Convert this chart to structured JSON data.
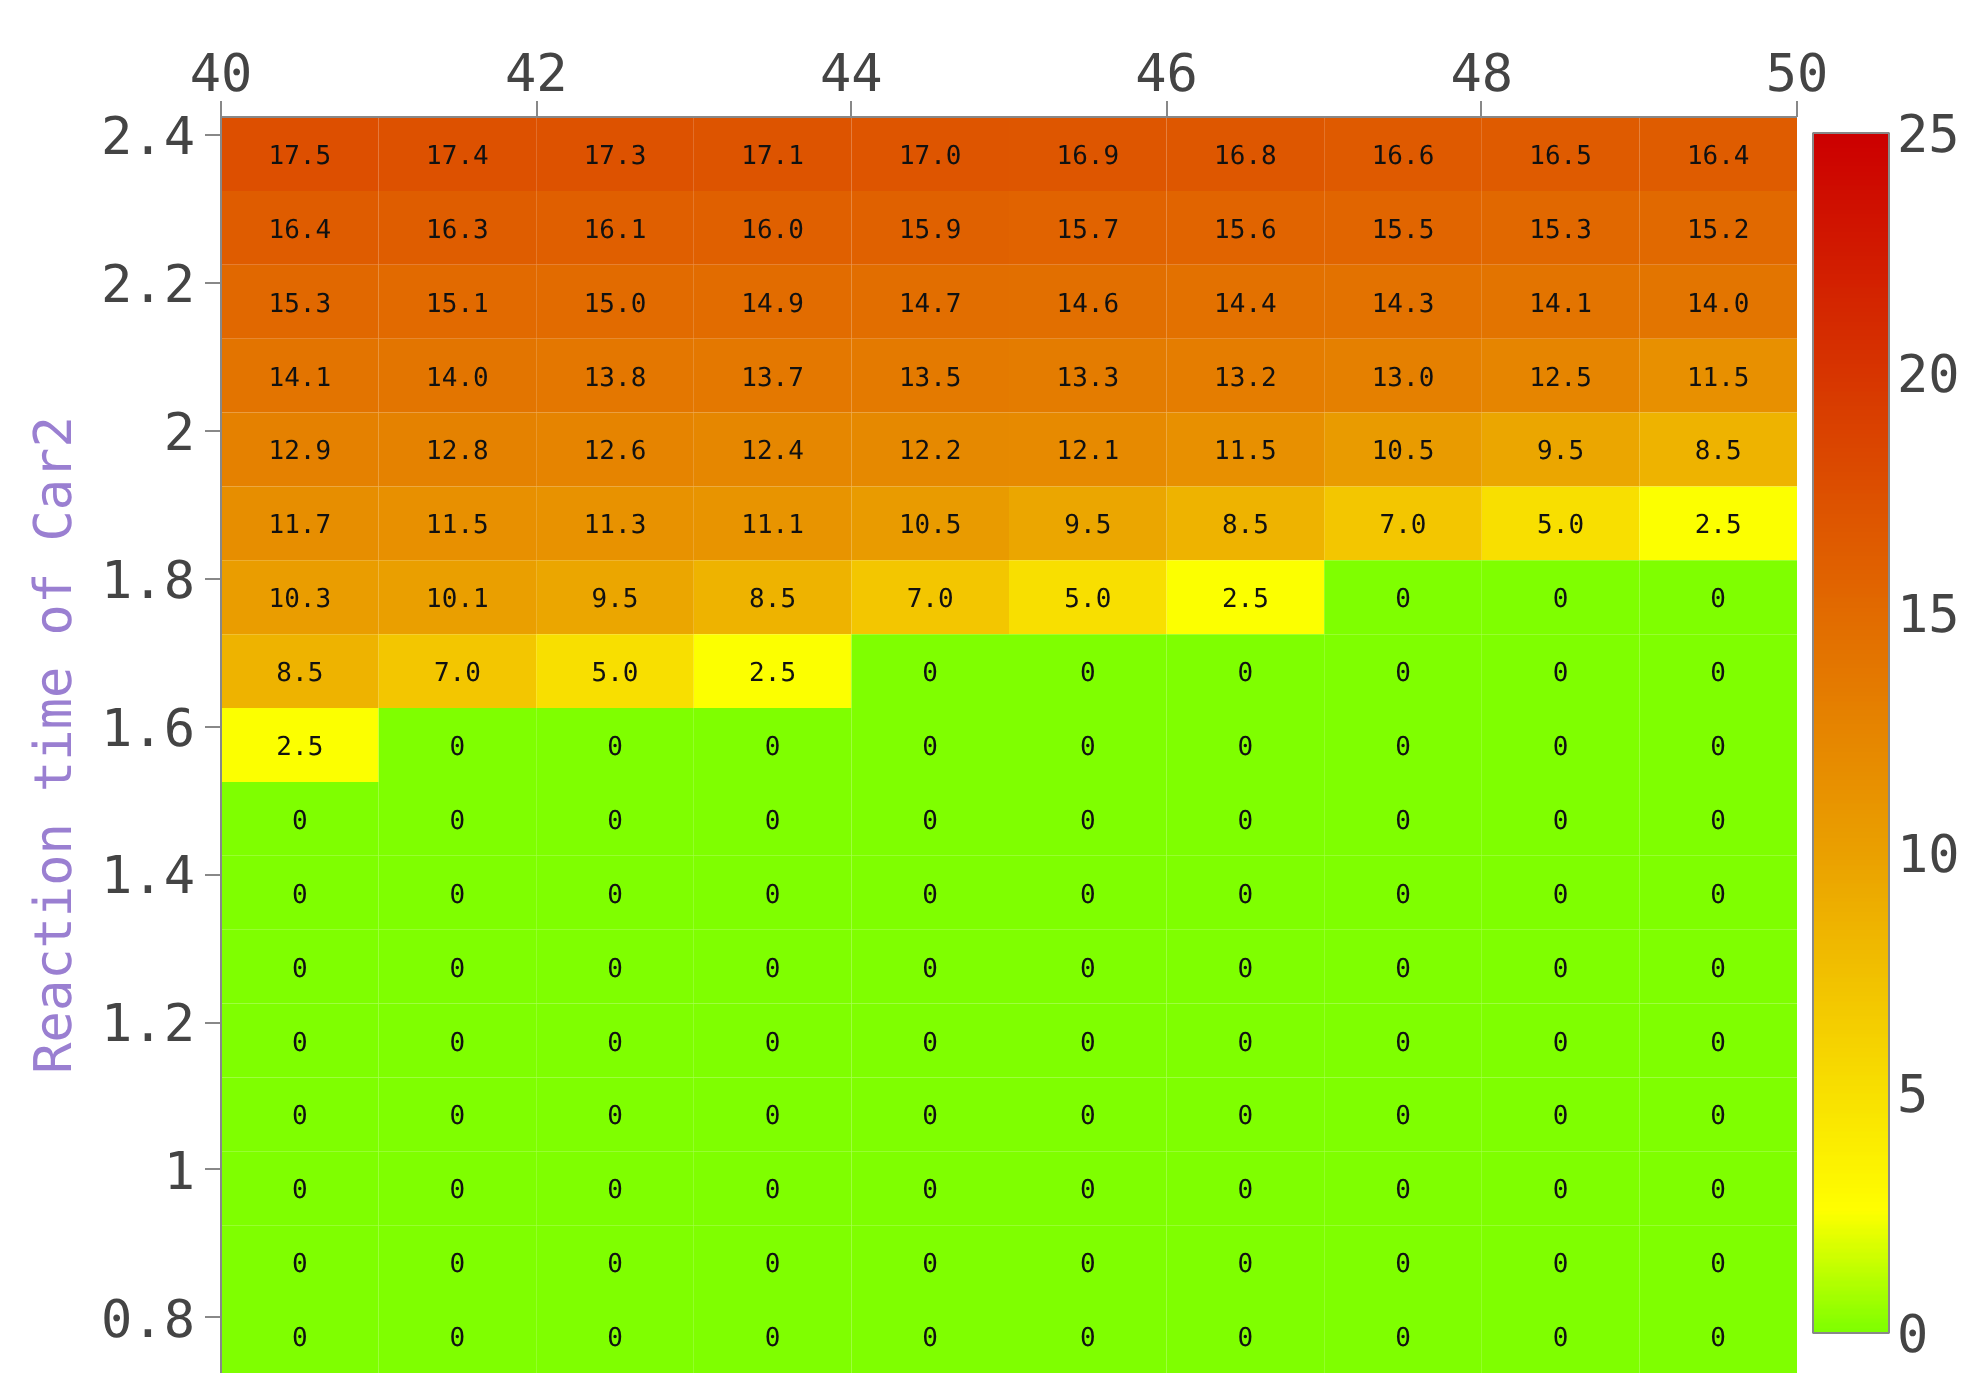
{
  "chart_data": {
    "type": "heatmap",
    "ylabel": "Reaction time of Car2",
    "x": [
      40.5,
      41.5,
      42.5,
      43.5,
      44.5,
      45.5,
      46.5,
      47.5,
      48.5,
      49.5
    ],
    "y": [
      2.375,
      2.275,
      2.175,
      2.075,
      1.975,
      1.875,
      1.775,
      1.675,
      1.575,
      1.475,
      1.375,
      1.275,
      1.175,
      1.075,
      0.975,
      0.875,
      0.775
    ],
    "xlim": [
      40,
      50
    ],
    "xticks": [
      40,
      42,
      44,
      46,
      48,
      50
    ],
    "ylim": [
      0.725,
      2.425
    ],
    "yticks": [
      0.8,
      1,
      1.2,
      1.4,
      1.6,
      1.8,
      2,
      2.2,
      2.4
    ],
    "clim": [
      0,
      25
    ],
    "cticks": [
      0,
      5,
      10,
      15,
      20,
      25
    ],
    "cells": [
      [
        17.5,
        17.4,
        17.3,
        17.1,
        17.0,
        16.9,
        16.8,
        16.6,
        16.5,
        16.4
      ],
      [
        16.4,
        16.3,
        16.1,
        16.0,
        15.9,
        15.7,
        15.6,
        15.5,
        15.3,
        15.2
      ],
      [
        15.3,
        15.1,
        15.0,
        14.9,
        14.7,
        14.6,
        14.4,
        14.3,
        14.1,
        14.0
      ],
      [
        14.1,
        14.0,
        13.8,
        13.7,
        13.5,
        13.3,
        13.2,
        13.0,
        12.5,
        11.5
      ],
      [
        12.9,
        12.8,
        12.6,
        12.4,
        12.2,
        12.1,
        11.5,
        10.5,
        9.5,
        8.5
      ],
      [
        11.7,
        11.5,
        11.3,
        11.1,
        10.5,
        9.5,
        8.5,
        7.0,
        5.0,
        2.5
      ],
      [
        10.3,
        10.1,
        9.5,
        8.5,
        7.0,
        5.0,
        2.5,
        0,
        0,
        0
      ],
      [
        8.5,
        7.0,
        5.0,
        2.5,
        0,
        0,
        0,
        0,
        0,
        0
      ],
      [
        2.5,
        0,
        0,
        0,
        0,
        0,
        0,
        0,
        0,
        0
      ],
      [
        0,
        0,
        0,
        0,
        0,
        0,
        0,
        0,
        0,
        0
      ],
      [
        0,
        0,
        0,
        0,
        0,
        0,
        0,
        0,
        0,
        0
      ],
      [
        0,
        0,
        0,
        0,
        0,
        0,
        0,
        0,
        0,
        0
      ],
      [
        0,
        0,
        0,
        0,
        0,
        0,
        0,
        0,
        0,
        0
      ],
      [
        0,
        0,
        0,
        0,
        0,
        0,
        0,
        0,
        0,
        0
      ],
      [
        0,
        0,
        0,
        0,
        0,
        0,
        0,
        0,
        0,
        0
      ],
      [
        0,
        0,
        0,
        0,
        0,
        0,
        0,
        0,
        0,
        0
      ],
      [
        0,
        0,
        0,
        0,
        0,
        0,
        0,
        0,
        0,
        0
      ]
    ],
    "cell_labels": [
      [
        "17.5",
        "17.4",
        "17.3",
        "17.1",
        "17.0",
        "16.9",
        "16.8",
        "16.6",
        "16.5",
        "16.4"
      ],
      [
        "16.4",
        "16.3",
        "16.1",
        "16.0",
        "15.9",
        "15.7",
        "15.6",
        "15.5",
        "15.3",
        "15.2"
      ],
      [
        "15.3",
        "15.1",
        "15.0",
        "14.9",
        "14.7",
        "14.6",
        "14.4",
        "14.3",
        "14.1",
        "14.0"
      ],
      [
        "14.1",
        "14.0",
        "13.8",
        "13.7",
        "13.5",
        "13.3",
        "13.2",
        "13.0",
        "12.5",
        "11.5"
      ],
      [
        "12.9",
        "12.8",
        "12.6",
        "12.4",
        "12.2",
        "12.1",
        "11.5",
        "10.5",
        "9.5",
        "8.5"
      ],
      [
        "11.7",
        "11.5",
        "11.3",
        "11.1",
        "10.5",
        "9.5",
        "8.5",
        "7.0",
        "5.0",
        "2.5"
      ],
      [
        "10.3",
        "10.1",
        "9.5",
        "8.5",
        "7.0",
        "5.0",
        "2.5",
        "0",
        "0",
        "0"
      ],
      [
        "8.5",
        "7.0",
        "5.0",
        "2.5",
        "0",
        "0",
        "0",
        "0",
        "0",
        "0"
      ],
      [
        "2.5",
        "0",
        "0",
        "0",
        "0",
        "0",
        "0",
        "0",
        "0",
        "0"
      ],
      [
        "0",
        "0",
        "0",
        "0",
        "0",
        "0",
        "0",
        "0",
        "0",
        "0"
      ],
      [
        "0",
        "0",
        "0",
        "0",
        "0",
        "0",
        "0",
        "0",
        "0",
        "0"
      ],
      [
        "0",
        "0",
        "0",
        "0",
        "0",
        "0",
        "0",
        "0",
        "0",
        "0"
      ],
      [
        "0",
        "0",
        "0",
        "0",
        "0",
        "0",
        "0",
        "0",
        "0",
        "0"
      ],
      [
        "0",
        "0",
        "0",
        "0",
        "0",
        "0",
        "0",
        "0",
        "0",
        "0"
      ],
      [
        "0",
        "0",
        "0",
        "0",
        "0",
        "0",
        "0",
        "0",
        "0",
        "0"
      ],
      [
        "0",
        "0",
        "0",
        "0",
        "0",
        "0",
        "0",
        "0",
        "0",
        "0"
      ],
      [
        "0",
        "0",
        "0",
        "0",
        "0",
        "0",
        "0",
        "0",
        "0",
        "0"
      ]
    ]
  }
}
